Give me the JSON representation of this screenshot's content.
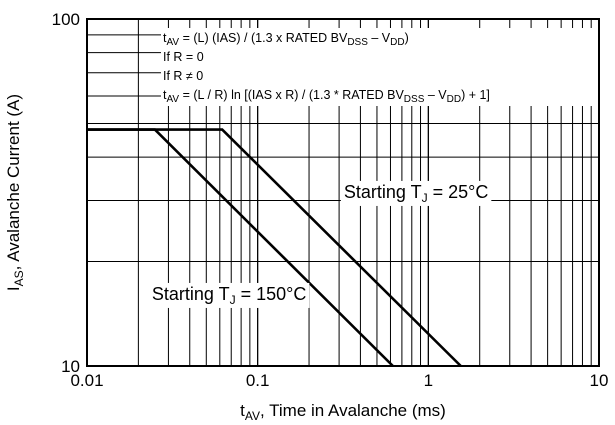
{
  "chart_data": {
    "type": "line",
    "x_scale": "log",
    "y_scale": "log",
    "xlim": [
      0.01,
      10
    ],
    "ylim": [
      10,
      100
    ],
    "grid": true,
    "xlabel": {
      "main": "t",
      "sub": "AV",
      "rest": ", Time in Avalanche (ms)"
    },
    "ylabel": {
      "main": "I",
      "sub": "AS",
      "rest": ", Avalanche Current (A)"
    },
    "x_ticks": [
      {
        "value": 0.01,
        "label": "0.01"
      },
      {
        "value": 0.1,
        "label": "0.1"
      },
      {
        "value": 1,
        "label": "1"
      },
      {
        "value": 10,
        "label": "10"
      }
    ],
    "y_ticks": [
      {
        "value": 10,
        "label": "10"
      },
      {
        "value": 100,
        "label": "100"
      }
    ],
    "series": [
      {
        "label_main": "Starting T",
        "label_sub": "J",
        "label_rest": " = 25°C",
        "label_at": [
          0.32,
          30.5
        ],
        "points": [
          [
            0.01,
            48
          ],
          [
            0.062,
            48
          ],
          [
            1.55,
            10
          ]
        ]
      },
      {
        "label_main": "Starting T",
        "label_sub": "J",
        "label_rest": " = 150°C",
        "label_at": [
          0.024,
          15.5
        ],
        "points": [
          [
            0.01,
            48
          ],
          [
            0.025,
            48
          ],
          [
            0.62,
            10
          ]
        ]
      }
    ],
    "annotations": [
      [
        {
          "t": "t"
        },
        {
          "t": "AV",
          "sub": true
        },
        {
          "t": " = (L) (IAS) / (1.3 x RATED BV"
        },
        {
          "t": "DSS",
          "sub": true
        },
        {
          "t": " – V"
        },
        {
          "t": "DD",
          "sub": true
        },
        {
          "t": ")"
        }
      ],
      [
        {
          "t": "If R = 0"
        }
      ],
      [
        {
          "t": "If R ≠ 0"
        }
      ],
      [
        {
          "t": "t"
        },
        {
          "t": "AV",
          "sub": true
        },
        {
          "t": " = (L / R) ln [(IAS x R) / (1.3 * RATED BV"
        },
        {
          "t": "DSS",
          "sub": true
        },
        {
          "t": " – V"
        },
        {
          "t": "DD",
          "sub": true
        },
        {
          "t": ") + 1]"
        }
      ]
    ]
  }
}
